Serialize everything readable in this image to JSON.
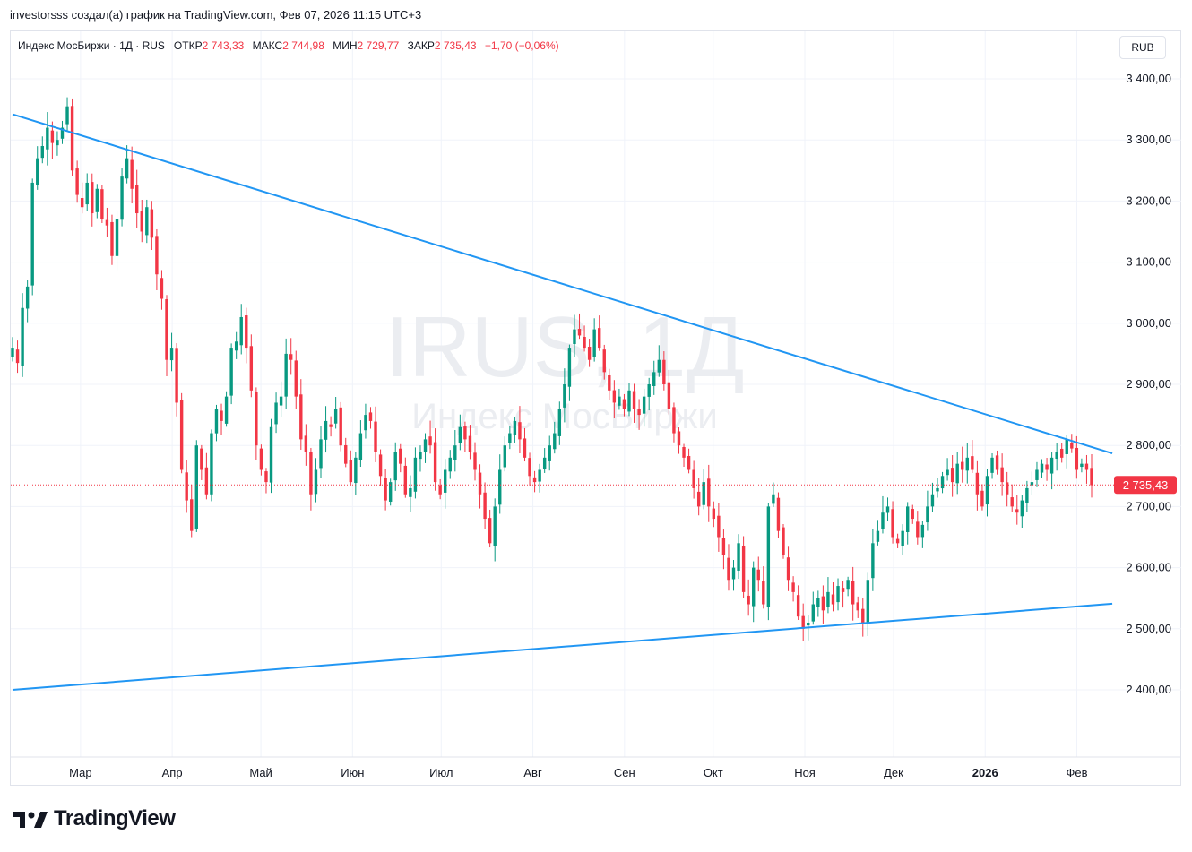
{
  "header": {
    "caption": "investorsss создал(а) график на TradingView.com, Фев 07, 2026 11:15 UTC+3"
  },
  "legend": {
    "symbol": "Индекс МосБиржи · 1Д · RUS",
    "open_label": "ОТКР",
    "open_value": "2 743,33",
    "high_label": "МАКС",
    "high_value": "2 744,98",
    "low_label": "МИН",
    "low_value": "2 729,77",
    "close_label": "ЗАКР",
    "close_value": "2 735,43",
    "change_value": "−1,70 (−0,06%)"
  },
  "currency": "RUB",
  "watermark": {
    "ticker": "IRUS, 1Д",
    "name": "Индекс МосБиржи"
  },
  "last_price_label": "2 735,43",
  "logo_text": "TradingView",
  "colors": {
    "up": "#089981",
    "down": "#f23645",
    "trendline": "#2962ff",
    "trendline_drawn": "#2196f3",
    "price_line": "#f23645"
  },
  "chart_data": {
    "type": "candlestick",
    "y_axis": {
      "min": 2400,
      "max": 3400,
      "ticks": [
        3400,
        3300,
        3200,
        3100,
        3000,
        2900,
        2800,
        2700,
        2600,
        2500,
        2400
      ],
      "tick_labels": [
        "3 400,00",
        "3 300,00",
        "3 200,00",
        "3 100,00",
        "3 000,00",
        "2 900,00",
        "2 800,00",
        "2 700,00",
        "2 600,00",
        "2 500,00",
        "2 400,00"
      ]
    },
    "x_axis": {
      "start": "2025-02-06",
      "end": "2026-02-06",
      "ticks": [
        {
          "date": "2025-03-01",
          "label": "Мар",
          "bold": false
        },
        {
          "date": "2025-04-01",
          "label": "Апр",
          "bold": false
        },
        {
          "date": "2025-05-01",
          "label": "Май",
          "bold": false
        },
        {
          "date": "2025-06-01",
          "label": "Июн",
          "bold": false
        },
        {
          "date": "2025-07-01",
          "label": "Июл",
          "bold": false
        },
        {
          "date": "2025-08-01",
          "label": "Авг",
          "bold": false
        },
        {
          "date": "2025-09-01",
          "label": "Сен",
          "bold": false
        },
        {
          "date": "2025-10-01",
          "label": "Окт",
          "bold": false
        },
        {
          "date": "2025-11-01",
          "label": "Ноя",
          "bold": false
        },
        {
          "date": "2025-12-01",
          "label": "Дек",
          "bold": false
        },
        {
          "date": "2026-01-01",
          "label": "2026",
          "bold": true
        },
        {
          "date": "2026-02-01",
          "label": "Фев",
          "bold": false
        }
      ]
    },
    "last_close": 2735.43,
    "trendlines": [
      {
        "start_date": "2025-02-06",
        "start_value": 3342,
        "end_date": "2026-02-13",
        "end_value": 2787
      },
      {
        "start_date": "2025-02-06",
        "start_value": 2400,
        "end_date": "2026-02-13",
        "end_value": 2541
      }
    ],
    "closes": [
      2960,
      2935,
      3025,
      3060,
      3230,
      3270,
      3290,
      3320,
      3295,
      3300,
      3320,
      3355,
      3250,
      3210,
      3190,
      3230,
      3180,
      3220,
      3170,
      3160,
      3110,
      3170,
      3240,
      3270,
      3220,
      3180,
      3150,
      3190,
      3140,
      3080,
      3040,
      2940,
      2960,
      2870,
      2760,
      2710,
      2660,
      2800,
      2760,
      2720,
      2820,
      2860,
      2840,
      2880,
      2960,
      2970,
      3010,
      2960,
      2890,
      2800,
      2760,
      2740,
      2830,
      2870,
      2880,
      2950,
      2940,
      2880,
      2810,
      2790,
      2720,
      2760,
      2810,
      2840,
      2830,
      2860,
      2800,
      2770,
      2740,
      2780,
      2820,
      2850,
      2840,
      2790,
      2750,
      2710,
      2740,
      2790,
      2770,
      2720,
      2730,
      2780,
      2790,
      2810,
      2800,
      2740,
      2720,
      2760,
      2780,
      2800,
      2830,
      2810,
      2790,
      2760,
      2720,
      2680,
      2640,
      2700,
      2760,
      2800,
      2820,
      2840,
      2810,
      2780,
      2750,
      2740,
      2760,
      2780,
      2800,
      2820,
      2860,
      2900,
      2960,
      2990,
      2980,
      2960,
      2940,
      2990,
      2960,
      2920,
      2890,
      2870,
      2880,
      2860,
      2890,
      2860,
      2850,
      2880,
      2900,
      2920,
      2940,
      2900,
      2860,
      2820,
      2800,
      2780,
      2760,
      2730,
      2700,
      2740,
      2700,
      2680,
      2650,
      2620,
      2580,
      2600,
      2640,
      2560,
      2540,
      2600,
      2580,
      2540,
      2700,
      2720,
      2660,
      2620,
      2580,
      2560,
      2520,
      2500,
      2510,
      2540,
      2550,
      2530,
      2560,
      2540,
      2570,
      2560,
      2580,
      2540,
      2530,
      2510,
      2580,
      2640,
      2660,
      2690,
      2700,
      2650,
      2640,
      2660,
      2700,
      2680,
      2650,
      2670,
      2700,
      2720,
      2730,
      2750,
      2760,
      2740,
      2770,
      2760,
      2780,
      2760,
      2720,
      2700,
      2750,
      2780,
      2760,
      2740,
      2720,
      2700,
      2690,
      2710,
      2730,
      2740,
      2760,
      2770,
      2760,
      2780,
      2790,
      2780,
      2810,
      2795,
      2760,
      2770,
      2760,
      2735
    ]
  }
}
